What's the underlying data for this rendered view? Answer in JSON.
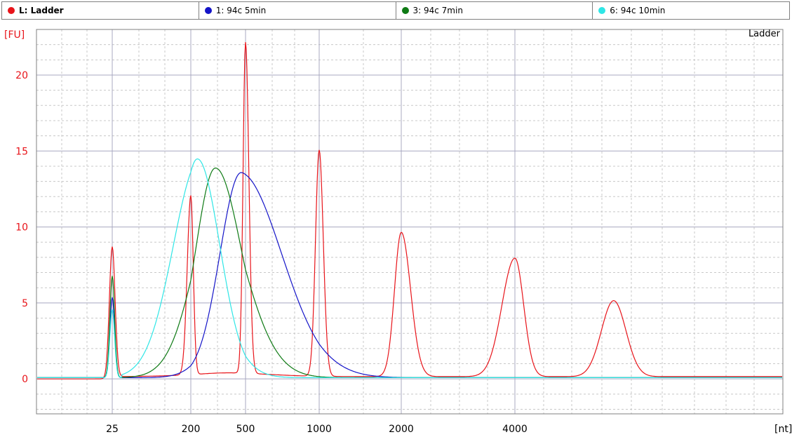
{
  "legend": [
    {
      "label": "L: Ladder",
      "color": "#e8141a",
      "active": true
    },
    {
      "label": "1: 94c 5min",
      "color": "#1414c8",
      "active": false
    },
    {
      "label": "3: 94c 7min",
      "color": "#0e7a14",
      "active": false
    },
    {
      "label": "6: 94c 10min",
      "color": "#2ee6e6",
      "active": false
    }
  ],
  "panel_title": "Ladder",
  "chart_data": {
    "type": "line",
    "ylabel": "[FU]",
    "xlabel": "[nt]",
    "ylim": [
      -2.3,
      23
    ],
    "yticks": [
      0,
      5,
      10,
      15,
      20
    ],
    "xticks": [
      "25",
      "200",
      "500",
      "1000",
      "2000",
      "4000"
    ],
    "grid": true,
    "series": [
      {
        "name": "L: Ladder",
        "color": "#e8141a",
        "baseline": 0.15,
        "peaks": [
          {
            "at": "25",
            "height": 8.7,
            "width": 0.08
          },
          {
            "at": "200",
            "height": 11.8,
            "width": 0.1
          },
          {
            "at": "500",
            "height": 21.8,
            "width": 0.1
          },
          {
            "at": "1000",
            "height": 14.9,
            "width": 0.11
          },
          {
            "at": "2000",
            "height": 9.5,
            "width": 0.18
          },
          {
            "at": "4000",
            "height": 7.8,
            "width": 0.25
          },
          {
            "at_offset_after_4000": 1.28,
            "height": 5.0,
            "width": 0.35
          }
        ]
      },
      {
        "name": "1: 94c 5min",
        "color": "#1414c8",
        "marker_peak": {
          "at": "25",
          "height": 5.3
        },
        "broad_peak": {
          "center_between": [
            "200",
            "500"
          ],
          "center_frac": 0.92,
          "height": 13.5,
          "rise_width": 0.85,
          "fall_width": 1.25
        }
      },
      {
        "name": "3: 94c 7min",
        "color": "#0e7a14",
        "marker_peak": {
          "at": "25",
          "height": 6.7
        },
        "broad_peak": {
          "center_between": [
            "200",
            "500"
          ],
          "center_frac": 0.45,
          "height": 13.8,
          "rise_width": 0.8,
          "fall_width": 1.05
        }
      },
      {
        "name": "6: 94c 10min",
        "color": "#2ee6e6",
        "marker_peak": {
          "at": "25",
          "height": 4.5
        },
        "broad_peak": {
          "center_between": [
            "200",
            "500"
          ],
          "center_frac": 0.12,
          "height": 14.4,
          "rise_width": 0.75,
          "fall_width": 0.9
        }
      }
    ]
  }
}
